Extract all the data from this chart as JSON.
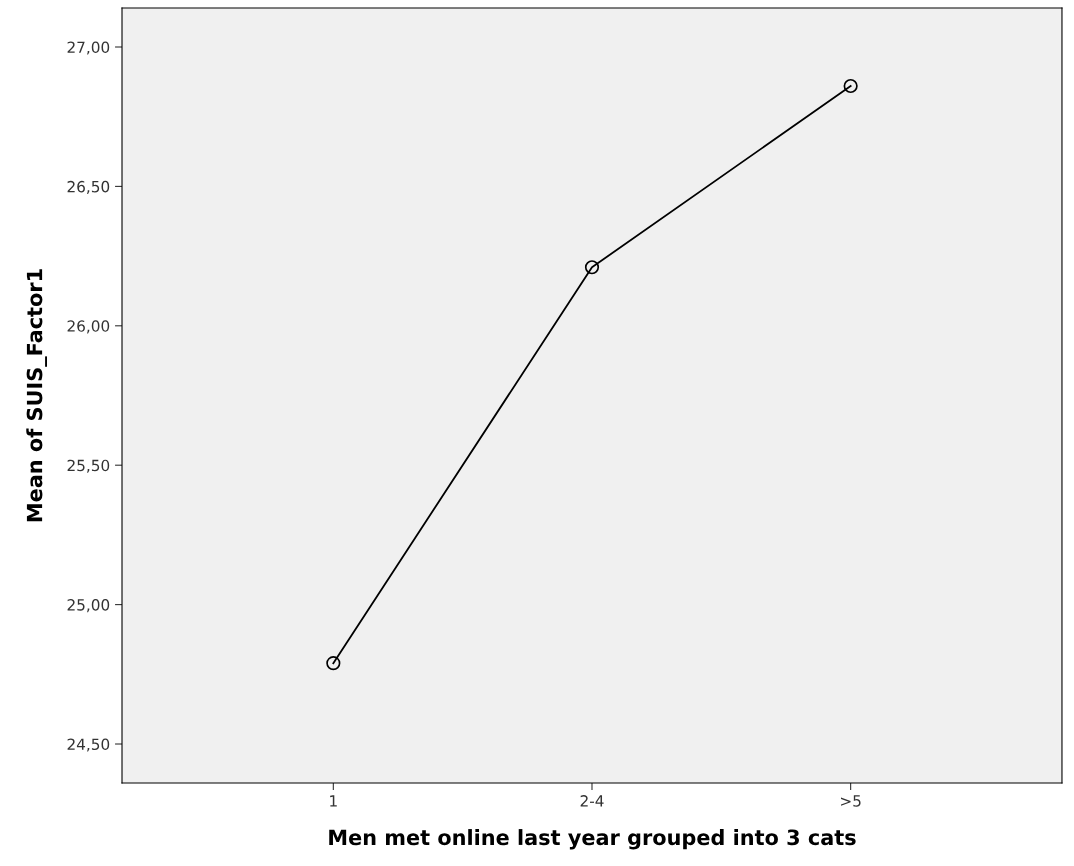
{
  "chart_data": {
    "type": "line",
    "xlabel": "Men met online last year grouped into 3 cats",
    "ylabel": "Mean of SUIS_Factor1",
    "categories": [
      "1",
      "2-4",
      ">5"
    ],
    "series": [
      {
        "color": "#000000",
        "values": [
          24.79,
          26.21,
          26.86
        ]
      }
    ],
    "ylim": [
      24.36,
      27.14
    ],
    "yticks": [
      {
        "value": 24.5,
        "label": "24,50"
      },
      {
        "value": 25.0,
        "label": "25,00"
      },
      {
        "value": 25.5,
        "label": "25,50"
      },
      {
        "value": 26.0,
        "label": "26,00"
      },
      {
        "value": 26.5,
        "label": "26,50"
      },
      {
        "value": 27.0,
        "label": "27,00"
      }
    ],
    "marker": "circle",
    "line_style": "solid",
    "grid": false
  }
}
